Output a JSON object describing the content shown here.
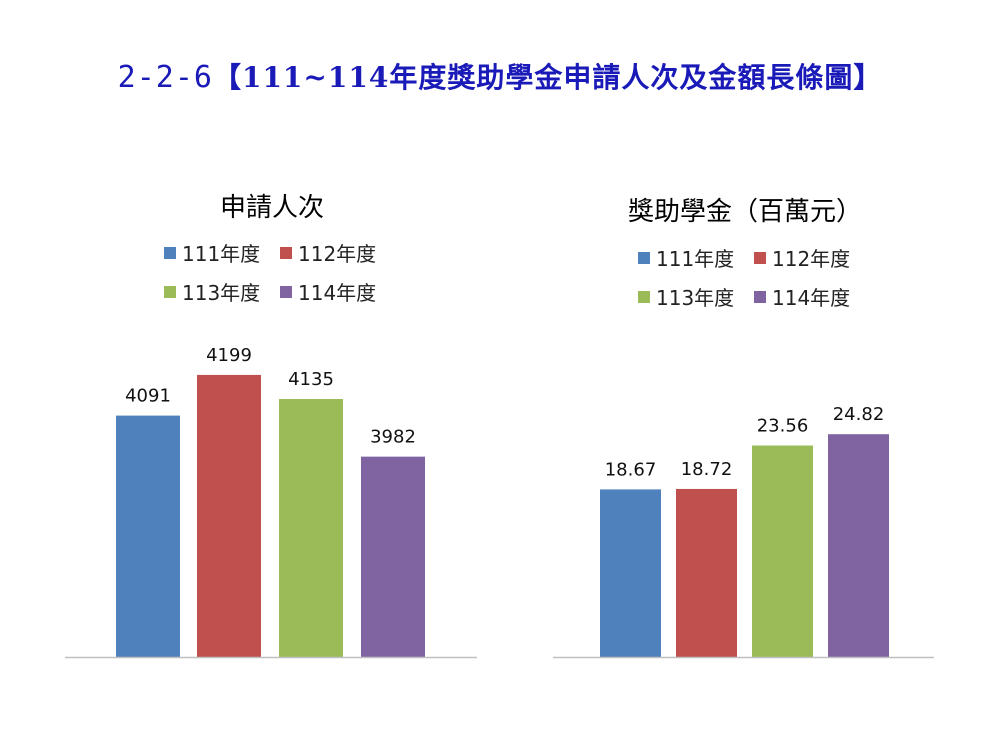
{
  "page": {
    "title_code": "2-2-6",
    "title_text": "【111~114年度獎助學金申請人次及金額長條圖】"
  },
  "colors": {
    "title": "#1a1ab8",
    "series": [
      "#4f81bd",
      "#c0504d",
      "#9bbb59",
      "#8064a2"
    ],
    "axis": "#bfbfbf"
  },
  "chart_data": [
    {
      "type": "bar",
      "title": "申請人次",
      "legend_placement": "top",
      "categories": [
        "111年度",
        "112年度",
        "113年度",
        "114年度"
      ],
      "values": [
        4091,
        4199,
        4135,
        3982
      ],
      "labels": [
        "4091",
        "4199",
        "4135",
        "3982"
      ],
      "ylim": [
        3450,
        4220
      ],
      "grid": false
    },
    {
      "type": "bar",
      "title": "獎助學金（百萬元）",
      "legend_placement": "top",
      "categories": [
        "111年度",
        "112年度",
        "113年度",
        "114年度"
      ],
      "values": [
        18.67,
        18.72,
        23.56,
        24.82
      ],
      "labels": [
        "18.67",
        "18.72",
        "23.56",
        "24.82"
      ],
      "ylim": [
        0,
        30.3
      ],
      "grid": false
    }
  ]
}
